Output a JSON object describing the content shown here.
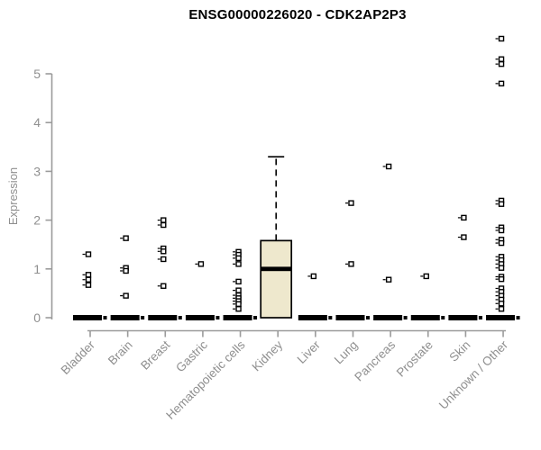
{
  "header": {
    "title": "ENSG00000226020 - CDK2AP2P3"
  },
  "chart_data": {
    "type": "boxplot",
    "title": "ENSG00000226020 - CDK2AP2P3",
    "xlabel": "",
    "ylabel": "Expression",
    "ylim": [
      0,
      5
    ],
    "yticks": [
      0,
      1,
      2,
      3,
      4,
      5
    ],
    "grid": "off",
    "legend": "none",
    "colors": {
      "box_fill": "#EEE8CD",
      "box_stroke": "#000000",
      "axis_color": "#9B9B9B",
      "tick_label_color": "#8F8F8F",
      "point_color": "#000000",
      "title_color": "#000000"
    },
    "categories": [
      "Bladder",
      "Brain",
      "Breast",
      "Gastric",
      "Hematopoietic cells",
      "Kidney",
      "Liver",
      "Lung",
      "Pancreas",
      "Prostate",
      "Skin",
      "Unknown / Other"
    ],
    "series": [
      {
        "name": "Bladder",
        "box": {
          "q1": 0,
          "median": 0,
          "q3": 0,
          "whisker_low": 0,
          "whisker_high": 0
        },
        "points": [
          1.3,
          0.88,
          0.78,
          0.67
        ]
      },
      {
        "name": "Brain",
        "box": {
          "q1": 0,
          "median": 0,
          "q3": 0,
          "whisker_low": 0,
          "whisker_high": 0
        },
        "points": [
          1.63,
          1.02,
          0.96,
          0.45
        ]
      },
      {
        "name": "Breast",
        "box": {
          "q1": 0,
          "median": 0,
          "q3": 0,
          "whisker_low": 0,
          "whisker_high": 0
        },
        "points": [
          2.0,
          1.9,
          1.42,
          1.36,
          1.2,
          0.65
        ]
      },
      {
        "name": "Gastric",
        "box": {
          "q1": 0,
          "median": 0,
          "q3": 0,
          "whisker_low": 0,
          "whisker_high": 0
        },
        "points": [
          1.1
        ]
      },
      {
        "name": "Hematopoietic cells",
        "box": {
          "q1": 0,
          "median": 0,
          "q3": 0,
          "whisker_low": 0,
          "whisker_high": 0
        },
        "points": [
          1.35,
          1.29,
          1.22,
          1.1,
          0.74,
          0.56,
          0.46,
          0.4,
          0.34,
          0.28,
          0.18
        ]
      },
      {
        "name": "Kidney",
        "box": {
          "q1": 0,
          "median": 1.0,
          "q3": 1.58,
          "whisker_low": 0,
          "whisker_high": 3.3
        },
        "points": []
      },
      {
        "name": "Liver",
        "box": {
          "q1": 0,
          "median": 0,
          "q3": 0,
          "whisker_low": 0,
          "whisker_high": 0
        },
        "points": [
          0.85
        ]
      },
      {
        "name": "Lung",
        "box": {
          "q1": 0,
          "median": 0,
          "q3": 0,
          "whisker_low": 0,
          "whisker_high": 0
        },
        "points": [
          2.35,
          1.1
        ]
      },
      {
        "name": "Pancreas",
        "box": {
          "q1": 0,
          "median": 0,
          "q3": 0,
          "whisker_low": 0,
          "whisker_high": 0
        },
        "points": [
          3.1,
          0.78
        ]
      },
      {
        "name": "Prostate",
        "box": {
          "q1": 0,
          "median": 0,
          "q3": 0,
          "whisker_low": 0,
          "whisker_high": 0
        },
        "points": [
          0.85
        ]
      },
      {
        "name": "Skin",
        "box": {
          "q1": 0,
          "median": 0,
          "q3": 0,
          "whisker_low": 0,
          "whisker_high": 0
        },
        "points": [
          2.05,
          1.65
        ]
      },
      {
        "name": "Unknown / Other",
        "box": {
          "q1": 0,
          "median": 0,
          "q3": 0,
          "whisker_low": 0,
          "whisker_high": 0
        },
        "points": [
          5.72,
          5.3,
          5.2,
          4.8,
          2.4,
          2.33,
          1.85,
          1.79,
          1.6,
          1.53,
          1.25,
          1.18,
          1.1,
          1.02,
          0.84,
          0.79,
          0.6,
          0.53,
          0.45,
          0.37,
          0.29,
          0.18
        ]
      }
    ]
  }
}
